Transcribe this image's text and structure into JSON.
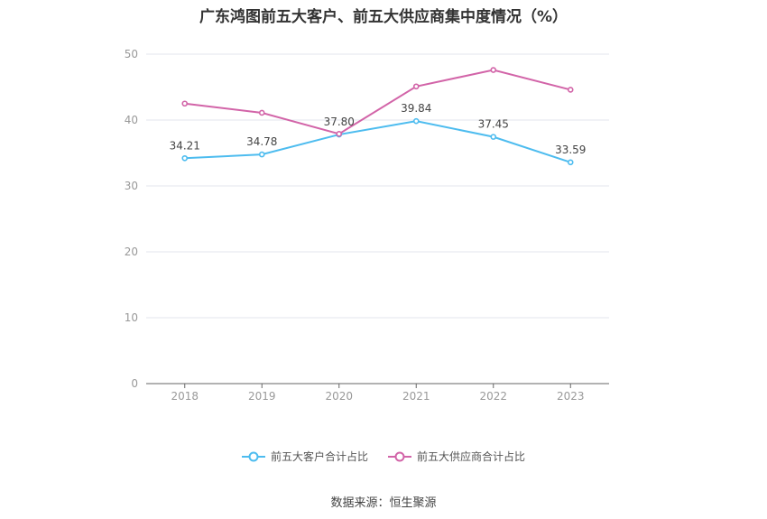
{
  "chart_data": {
    "type": "line",
    "title": "广东鸿图前五大客户、前五大供应商集中度情况（%）",
    "x": [
      "2018",
      "2019",
      "2020",
      "2021",
      "2022",
      "2023"
    ],
    "ylim": [
      0,
      50
    ],
    "yticks": [
      "0",
      "10",
      "20",
      "30",
      "40",
      "50"
    ],
    "grid": true,
    "legend_position": "bottom",
    "series": [
      {
        "name": "前五大客户合计占比",
        "color": "#4dbcef",
        "values": [
          34.21,
          34.78,
          37.8,
          39.84,
          37.45,
          33.59
        ],
        "labels": [
          "34.21",
          "34.78",
          "37.80",
          "39.84",
          "37.45",
          "33.59"
        ]
      },
      {
        "name": "前五大供应商合计占比",
        "color": "#d264a8",
        "values": [
          42.5,
          41.1,
          37.9,
          45.1,
          47.6,
          44.6
        ]
      }
    ]
  },
  "source": "数据来源：恒生聚源"
}
